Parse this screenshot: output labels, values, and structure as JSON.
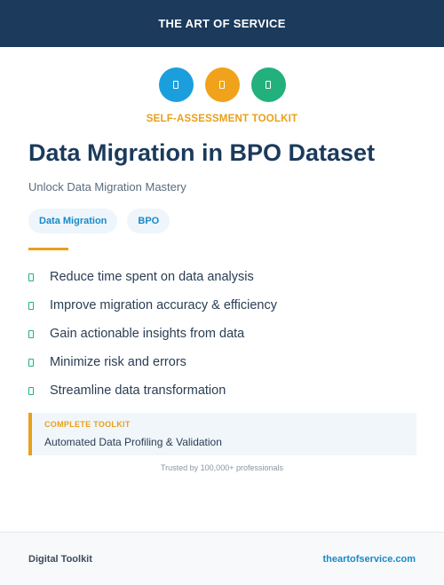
{
  "header": {
    "title": "THE ART OF SERVICE"
  },
  "icons": [
    {
      "name": "box-icon",
      "color": "#1a9fdc"
    },
    {
      "name": "box-icon",
      "color": "#f0a21b"
    },
    {
      "name": "box-icon",
      "color": "#22b07d"
    }
  ],
  "kicker": "SELF-ASSESSMENT TOOLKIT",
  "title": "Data Migration in BPO Dataset",
  "subtitle": "Unlock Data Migration Mastery",
  "tags": [
    "Data Migration",
    "BPO"
  ],
  "features": [
    "Reduce time spent on data analysis",
    "Improve migration accuracy & efficiency",
    "Gain actionable insights from data",
    "Minimize risk and errors",
    "Streamline data transformation"
  ],
  "callout": {
    "label": "COMPLETE TOOLKIT",
    "text": "Automated Data Profiling & Validation"
  },
  "trusted": "Trusted by 100,000+ professionals",
  "footer": {
    "left": "Digital Toolkit",
    "right": "theartofservice.com"
  }
}
